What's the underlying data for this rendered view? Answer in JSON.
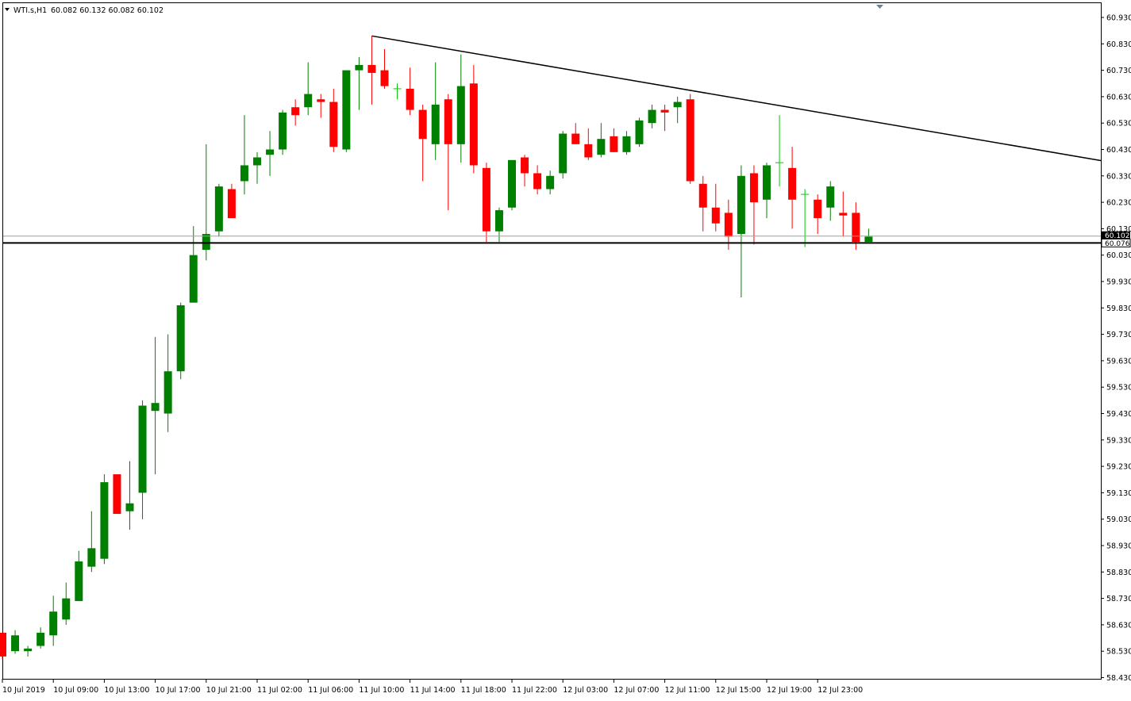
{
  "symbol_info": {
    "symbol": "WTI.s,H1",
    "ohlc": "60.082 60.132 60.082 60.102",
    "menu_icon": "triangle-down-icon"
  },
  "colors": {
    "bull": "#008000",
    "bear": "#ff0000",
    "bull_doji": "#00c800",
    "line": "#000000",
    "background": "#ffffff"
  },
  "chart_data": {
    "type": "candlestick",
    "timeframe": "H1",
    "ylim": [
      58.43,
      60.97
    ],
    "y_ticks": [
      "60.930",
      "60.830",
      "60.730",
      "60.630",
      "60.530",
      "60.430",
      "60.330",
      "60.230",
      "60.130",
      "60.030",
      "59.930",
      "59.830",
      "59.730",
      "59.630",
      "59.530",
      "59.430",
      "59.330",
      "59.230",
      "59.130",
      "59.030",
      "58.930",
      "58.830",
      "58.730",
      "58.630",
      "58.530",
      "58.430"
    ],
    "x_ticks": [
      "10 Jul 2019",
      "10 Jul 09:00",
      "10 Jul 13:00",
      "10 Jul 17:00",
      "10 Jul 21:00",
      "11 Jul 02:00",
      "11 Jul 06:00",
      "11 Jul 10:00",
      "11 Jul 14:00",
      "11 Jul 18:00",
      "11 Jul 22:00",
      "12 Jul 03:00",
      "12 Jul 07:00",
      "12 Jul 11:00",
      "12 Jul 15:00",
      "12 Jul 19:00",
      "12 Jul 23:00"
    ],
    "current_price": "60.102",
    "horizontal_line_price": "60.076",
    "horizontal_line_value": 60.076,
    "current_price_value": 60.102,
    "trendline": {
      "start_candle": 29,
      "start_price": 60.86,
      "end_candle": 86,
      "end_price": 60.39
    },
    "candles": [
      {
        "o": 58.6,
        "h": 58.6,
        "l": 58.5,
        "c": 58.51
      },
      {
        "o": 58.53,
        "h": 58.61,
        "l": 58.52,
        "c": 58.59
      },
      {
        "o": 58.53,
        "h": 58.55,
        "l": 58.51,
        "c": 58.54
      },
      {
        "o": 58.55,
        "h": 58.62,
        "l": 58.54,
        "c": 58.6
      },
      {
        "o": 58.59,
        "h": 58.74,
        "l": 58.55,
        "c": 58.68
      },
      {
        "o": 58.65,
        "h": 58.79,
        "l": 58.63,
        "c": 58.73
      },
      {
        "o": 58.72,
        "h": 58.91,
        "l": 58.72,
        "c": 58.87
      },
      {
        "o": 58.85,
        "h": 59.06,
        "l": 58.83,
        "c": 58.92
      },
      {
        "o": 58.88,
        "h": 59.2,
        "l": 58.86,
        "c": 59.17
      },
      {
        "o": 59.2,
        "h": 59.2,
        "l": 59.05,
        "c": 59.05
      },
      {
        "o": 59.06,
        "h": 59.25,
        "l": 58.99,
        "c": 59.09
      },
      {
        "o": 59.13,
        "h": 59.48,
        "l": 59.03,
        "c": 59.46
      },
      {
        "o": 59.44,
        "h": 59.72,
        "l": 59.2,
        "c": 59.47
      },
      {
        "o": 59.43,
        "h": 59.73,
        "l": 59.36,
        "c": 59.59
      },
      {
        "o": 59.59,
        "h": 59.85,
        "l": 59.56,
        "c": 59.84
      },
      {
        "o": 59.85,
        "h": 60.14,
        "l": 59.85,
        "c": 60.03
      },
      {
        "o": 60.05,
        "h": 60.45,
        "l": 60.01,
        "c": 60.11
      },
      {
        "o": 60.12,
        "h": 60.3,
        "l": 60.1,
        "c": 60.29
      },
      {
        "o": 60.28,
        "h": 60.3,
        "l": 60.17,
        "c": 60.17
      },
      {
        "o": 60.31,
        "h": 60.56,
        "l": 60.26,
        "c": 60.37
      },
      {
        "o": 60.37,
        "h": 60.42,
        "l": 60.3,
        "c": 60.4
      },
      {
        "o": 60.41,
        "h": 60.5,
        "l": 60.33,
        "c": 60.43
      },
      {
        "o": 60.43,
        "h": 60.58,
        "l": 60.41,
        "c": 60.57
      },
      {
        "o": 60.59,
        "h": 60.62,
        "l": 60.52,
        "c": 60.56
      },
      {
        "o": 60.59,
        "h": 60.76,
        "l": 60.56,
        "c": 60.64
      },
      {
        "o": 60.62,
        "h": 60.64,
        "l": 60.55,
        "c": 60.61
      },
      {
        "o": 60.61,
        "h": 60.66,
        "l": 60.42,
        "c": 60.44
      },
      {
        "o": 60.43,
        "h": 60.73,
        "l": 60.42,
        "c": 60.73
      },
      {
        "o": 60.73,
        "h": 60.78,
        "l": 60.58,
        "c": 60.75
      },
      {
        "o": 60.75,
        "h": 60.86,
        "l": 60.6,
        "c": 60.72
      },
      {
        "o": 60.73,
        "h": 60.81,
        "l": 60.66,
        "c": 60.67
      },
      {
        "o": 60.66,
        "h": 60.68,
        "l": 60.62,
        "c": 60.66
      },
      {
        "o": 60.66,
        "h": 60.74,
        "l": 60.56,
        "c": 60.58
      },
      {
        "o": 60.58,
        "h": 60.6,
        "l": 60.31,
        "c": 60.47
      },
      {
        "o": 60.45,
        "h": 60.76,
        "l": 60.39,
        "c": 60.6
      },
      {
        "o": 60.62,
        "h": 60.64,
        "l": 60.2,
        "c": 60.45
      },
      {
        "o": 60.45,
        "h": 60.79,
        "l": 60.38,
        "c": 60.67
      },
      {
        "o": 60.68,
        "h": 60.75,
        "l": 60.34,
        "c": 60.37
      },
      {
        "o": 60.36,
        "h": 60.38,
        "l": 60.08,
        "c": 60.12
      },
      {
        "o": 60.12,
        "h": 60.21,
        "l": 60.08,
        "c": 60.2
      },
      {
        "o": 60.21,
        "h": 60.38,
        "l": 60.2,
        "c": 60.39
      },
      {
        "o": 60.4,
        "h": 60.41,
        "l": 60.29,
        "c": 60.34
      },
      {
        "o": 60.34,
        "h": 60.37,
        "l": 60.26,
        "c": 60.28
      },
      {
        "o": 60.28,
        "h": 60.35,
        "l": 60.26,
        "c": 60.33
      },
      {
        "o": 60.34,
        "h": 60.5,
        "l": 60.32,
        "c": 60.49
      },
      {
        "o": 60.49,
        "h": 60.53,
        "l": 60.45,
        "c": 60.45
      },
      {
        "o": 60.45,
        "h": 60.51,
        "l": 60.39,
        "c": 60.4
      },
      {
        "o": 60.41,
        "h": 60.53,
        "l": 60.4,
        "c": 60.47
      },
      {
        "o": 60.48,
        "h": 60.51,
        "l": 60.42,
        "c": 60.42
      },
      {
        "o": 60.42,
        "h": 60.5,
        "l": 60.41,
        "c": 60.48
      },
      {
        "o": 60.45,
        "h": 60.55,
        "l": 60.44,
        "c": 60.54
      },
      {
        "o": 60.53,
        "h": 60.6,
        "l": 60.51,
        "c": 60.58
      },
      {
        "o": 60.58,
        "h": 60.6,
        "l": 60.5,
        "c": 60.57
      },
      {
        "o": 60.59,
        "h": 60.63,
        "l": 60.53,
        "c": 60.61
      },
      {
        "o": 60.62,
        "h": 60.64,
        "l": 60.3,
        "c": 60.31
      },
      {
        "o": 60.3,
        "h": 60.33,
        "l": 60.12,
        "c": 60.21
      },
      {
        "o": 60.21,
        "h": 60.3,
        "l": 60.12,
        "c": 60.15
      },
      {
        "o": 60.19,
        "h": 60.24,
        "l": 60.05,
        "c": 60.1
      },
      {
        "o": 60.11,
        "h": 60.37,
        "l": 59.87,
        "c": 60.33
      },
      {
        "o": 60.34,
        "h": 60.37,
        "l": 60.07,
        "c": 60.23
      },
      {
        "o": 60.24,
        "h": 60.38,
        "l": 60.17,
        "c": 60.37
      },
      {
        "o": 60.38,
        "h": 60.56,
        "l": 60.29,
        "c": 60.38
      },
      {
        "o": 60.36,
        "h": 60.44,
        "l": 60.13,
        "c": 60.24
      },
      {
        "o": 60.26,
        "h": 60.28,
        "l": 60.06,
        "c": 60.26
      },
      {
        "o": 60.24,
        "h": 60.26,
        "l": 60.11,
        "c": 60.17
      },
      {
        "o": 60.21,
        "h": 60.31,
        "l": 60.16,
        "c": 60.29
      },
      {
        "o": 60.19,
        "h": 60.27,
        "l": 60.1,
        "c": 60.18
      },
      {
        "o": 60.19,
        "h": 60.23,
        "l": 60.05,
        "c": 60.08
      },
      {
        "o": 60.08,
        "h": 60.13,
        "l": 60.08,
        "c": 60.1
      }
    ]
  }
}
